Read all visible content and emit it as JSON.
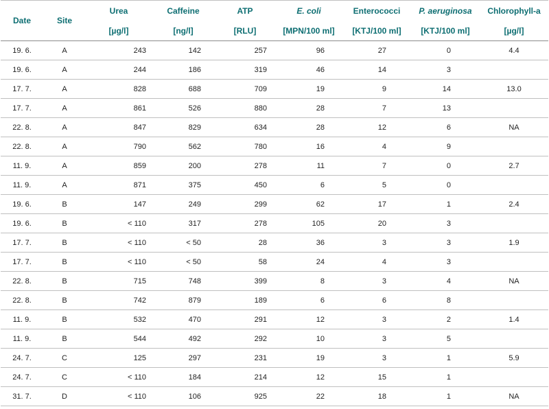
{
  "headers": {
    "date": "Date",
    "site": "Site",
    "urea": "Urea",
    "urea_unit": "[µg/l]",
    "caffeine": "Caffeine",
    "caffeine_unit": "[ng/l]",
    "atp": "ATP",
    "atp_unit": "[RLU]",
    "ecoli": "E. coli",
    "ecoli_unit": "[MPN/100 ml]",
    "enterococci": "Enterococci",
    "enterococci_unit": "[KTJ/100 ml]",
    "paeruginosa": "P. aeruginosa",
    "paeruginosa_unit": "[KTJ/100 ml]",
    "chlorophyll": "Chlorophyll-a",
    "chlorophyll_unit": "[µg/l]"
  },
  "rows": [
    {
      "date": "19. 6.",
      "site": "A",
      "urea": "243",
      "caffeine": "142",
      "atp": "257",
      "ecoli": "96",
      "enterococci": "27",
      "paeruginosa": "0",
      "chlorophyll": "4.4"
    },
    {
      "date": "19. 6.",
      "site": "A",
      "urea": "244",
      "caffeine": "186",
      "atp": "319",
      "ecoli": "46",
      "enterococci": "14",
      "paeruginosa": "3",
      "chlorophyll": ""
    },
    {
      "date": "17. 7.",
      "site": "A",
      "urea": "828",
      "caffeine": "688",
      "atp": "709",
      "ecoli": "19",
      "enterococci": "9",
      "paeruginosa": "14",
      "chlorophyll": "13.0"
    },
    {
      "date": "17. 7.",
      "site": "A",
      "urea": "861",
      "caffeine": "526",
      "atp": "880",
      "ecoli": "28",
      "enterococci": "7",
      "paeruginosa": "13",
      "chlorophyll": ""
    },
    {
      "date": "22. 8.",
      "site": "A",
      "urea": "847",
      "caffeine": "829",
      "atp": "634",
      "ecoli": "28",
      "enterococci": "12",
      "paeruginosa": "6",
      "chlorophyll": "NA"
    },
    {
      "date": "22. 8.",
      "site": "A",
      "urea": "790",
      "caffeine": "562",
      "atp": "780",
      "ecoli": "16",
      "enterococci": "4",
      "paeruginosa": "9",
      "chlorophyll": ""
    },
    {
      "date": "11. 9.",
      "site": "A",
      "urea": "859",
      "caffeine": "200",
      "atp": "278",
      "ecoli": "11",
      "enterococci": "7",
      "paeruginosa": "0",
      "chlorophyll": "2.7"
    },
    {
      "date": "11. 9.",
      "site": "A",
      "urea": "871",
      "caffeine": "375",
      "atp": "450",
      "ecoli": "6",
      "enterococci": "5",
      "paeruginosa": "0",
      "chlorophyll": ""
    },
    {
      "date": "19. 6.",
      "site": "B",
      "urea": "147",
      "caffeine": "249",
      "atp": "299",
      "ecoli": "62",
      "enterococci": "17",
      "paeruginosa": "1",
      "chlorophyll": "2.4"
    },
    {
      "date": "19. 6.",
      "site": "B",
      "urea": "< 110",
      "caffeine": "317",
      "atp": "278",
      "ecoli": "105",
      "enterococci": "20",
      "paeruginosa": "3",
      "chlorophyll": ""
    },
    {
      "date": "17. 7.",
      "site": "B",
      "urea": "< 110",
      "caffeine": "< 50",
      "atp": "28",
      "ecoli": "36",
      "enterococci": "3",
      "paeruginosa": "3",
      "chlorophyll": "1.9"
    },
    {
      "date": "17. 7.",
      "site": "B",
      "urea": "< 110",
      "caffeine": "< 50",
      "atp": "58",
      "ecoli": "24",
      "enterococci": "4",
      "paeruginosa": "3",
      "chlorophyll": ""
    },
    {
      "date": "22. 8.",
      "site": "B",
      "urea": "715",
      "caffeine": "748",
      "atp": "399",
      "ecoli": "8",
      "enterococci": "3",
      "paeruginosa": "4",
      "chlorophyll": "NA"
    },
    {
      "date": "22. 8.",
      "site": "B",
      "urea": "742",
      "caffeine": "879",
      "atp": "189",
      "ecoli": "6",
      "enterococci": "6",
      "paeruginosa": "8",
      "chlorophyll": ""
    },
    {
      "date": "11. 9.",
      "site": "B",
      "urea": "532",
      "caffeine": "470",
      "atp": "291",
      "ecoli": "12",
      "enterococci": "3",
      "paeruginosa": "2",
      "chlorophyll": "1.4"
    },
    {
      "date": "11. 9.",
      "site": "B",
      "urea": "544",
      "caffeine": "492",
      "atp": "292",
      "ecoli": "10",
      "enterococci": "3",
      "paeruginosa": "5",
      "chlorophyll": ""
    },
    {
      "date": "24. 7.",
      "site": "C",
      "urea": "125",
      "caffeine": "297",
      "atp": "231",
      "ecoli": "19",
      "enterococci": "3",
      "paeruginosa": "1",
      "chlorophyll": "5.9"
    },
    {
      "date": "24. 7.",
      "site": "C",
      "urea": "< 110",
      "caffeine": "184",
      "atp": "214",
      "ecoli": "12",
      "enterococci": "15",
      "paeruginosa": "1",
      "chlorophyll": ""
    },
    {
      "date": "31. 7.",
      "site": "D",
      "urea": "< 110",
      "caffeine": "106",
      "atp": "925",
      "ecoli": "22",
      "enterococci": "18",
      "paeruginosa": "1",
      "chlorophyll": "NA"
    }
  ]
}
